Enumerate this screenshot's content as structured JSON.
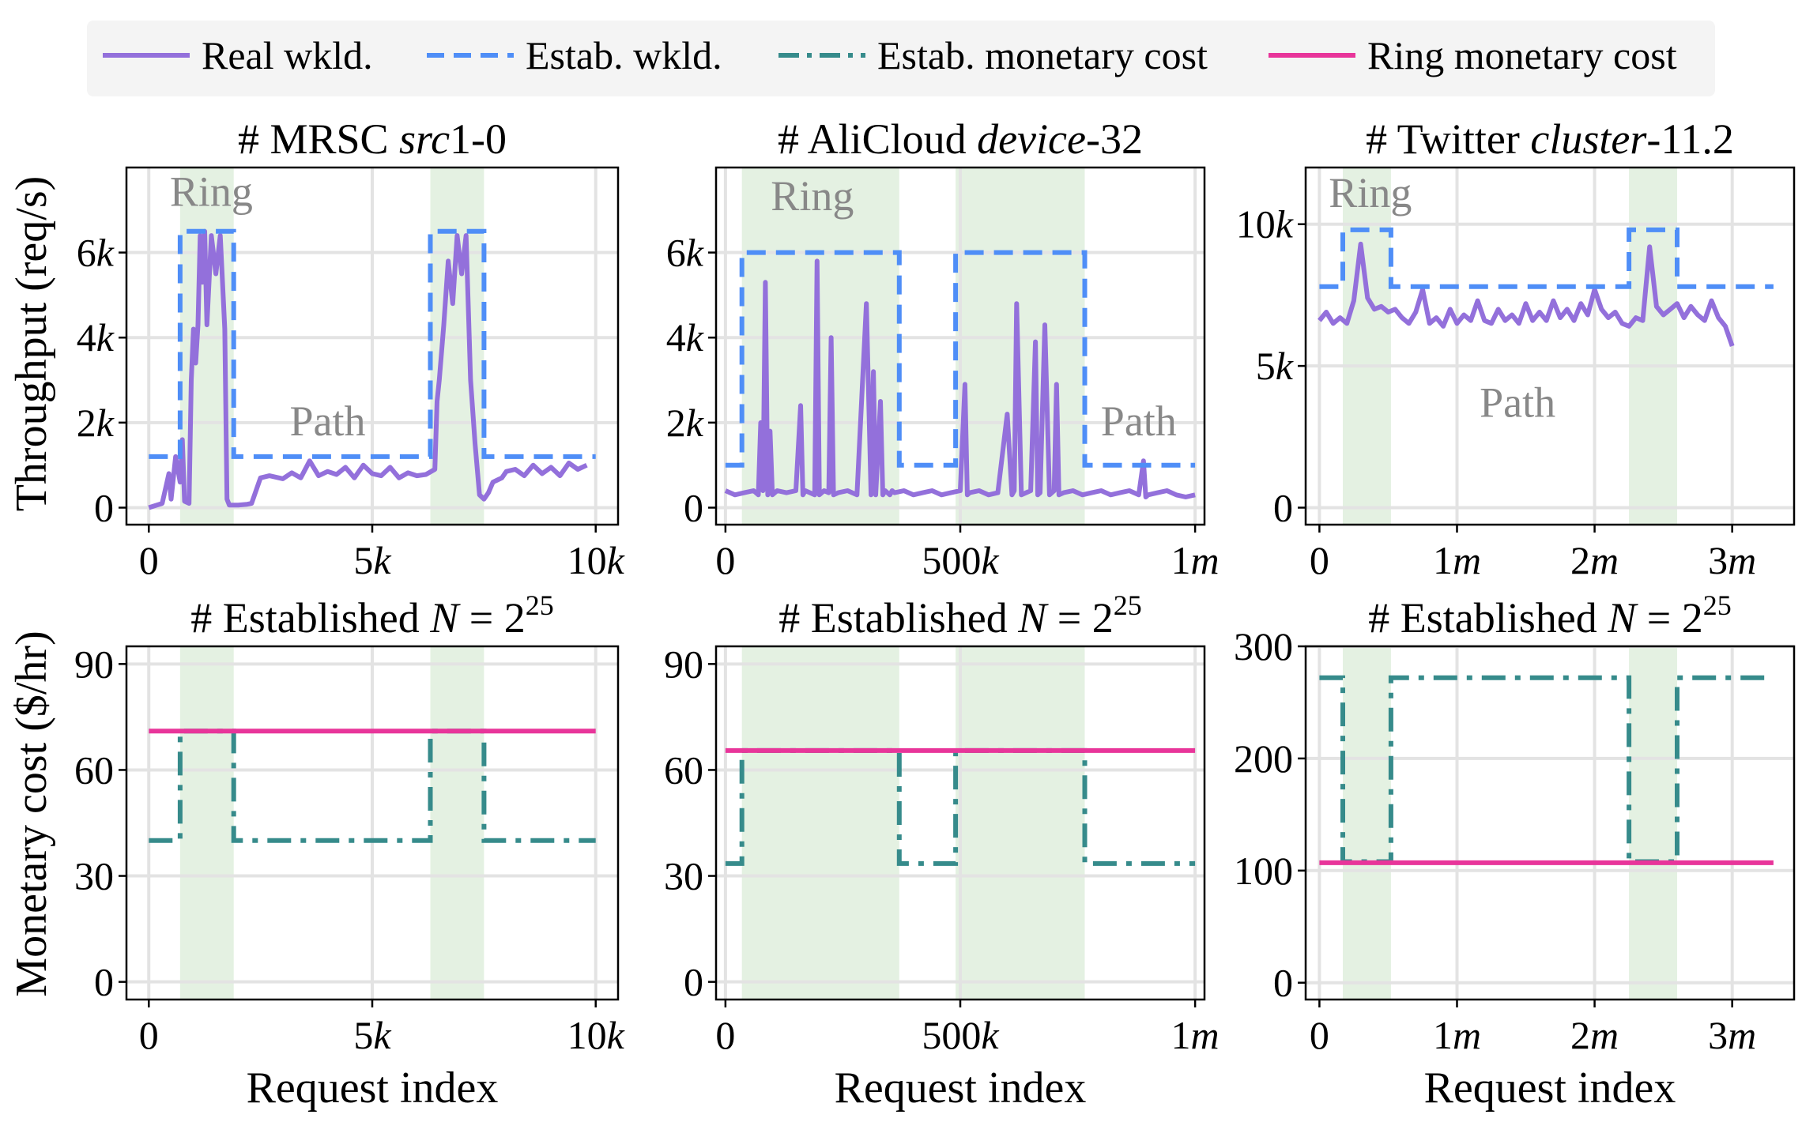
{
  "legend": [
    {
      "label": "Real wkld.",
      "color": "#9370DB",
      "style": "solid"
    },
    {
      "label": "Estab. wkld.",
      "color": "#4F8EF7",
      "style": "dashed"
    },
    {
      "label": "Estab. monetary cost",
      "color": "#368B8B",
      "style": "dashdot"
    },
    {
      "label": "Ring monetary cost",
      "color": "#E8359A",
      "style": "solid"
    }
  ],
  "colors": {
    "shade": "#E4F1E2",
    "grid": "#E3E3E3"
  },
  "ylabels": {
    "top": "Throughput (req/s)",
    "bottom": "Monetary cost ($/hr)"
  },
  "xlabel": "Request index",
  "chart_data": [
    {
      "type": "line",
      "row": 0,
      "col": 0,
      "title_plain": "# MRSC ",
      "title_ital": "src",
      "title_tail": "1-0",
      "xlim": [
        -500,
        10500
      ],
      "ylim": [
        -400,
        8000
      ],
      "xticks": [
        {
          "v": 0,
          "n": "0",
          "u": ""
        },
        {
          "v": 5000,
          "n": "5",
          "u": "k"
        },
        {
          "v": 10000,
          "n": "10",
          "u": "k"
        }
      ],
      "yticks": [
        {
          "v": 0,
          "n": "0",
          "u": ""
        },
        {
          "v": 2000,
          "n": "2",
          "u": "k"
        },
        {
          "v": 4000,
          "n": "4",
          "u": "k"
        },
        {
          "v": 6000,
          "n": "6",
          "u": "k"
        }
      ],
      "shaded": [
        [
          700,
          1900
        ],
        [
          6300,
          7500
        ]
      ],
      "annotations": [
        {
          "text": "Ring",
          "x": 1400,
          "y": 7100
        },
        {
          "text": "Path",
          "x": 4000,
          "y": 1700
        }
      ],
      "series": [
        {
          "name": "Real wkld.",
          "style": "real",
          "x": [
            0,
            300,
            450,
            500,
            600,
            700,
            750,
            800,
            900,
            950,
            1000,
            1050,
            1100,
            1150,
            1200,
            1250,
            1300,
            1400,
            1500,
            1600,
            1700,
            1750,
            1800,
            1900,
            2000,
            2200,
            2300,
            2500,
            2700,
            3000,
            3200,
            3400,
            3600,
            3800,
            4000,
            4200,
            4400,
            4600,
            4800,
            5000,
            5200,
            5400,
            5600,
            5800,
            6000,
            6200,
            6400,
            6450,
            6500,
            6600,
            6700,
            6800,
            6900,
            7000,
            7100,
            7200,
            7300,
            7400,
            7500,
            7600,
            7700,
            7800,
            7900,
            8000,
            8200,
            8400,
            8600,
            8800,
            9000,
            9200,
            9400,
            9600,
            9800
          ],
          "y": [
            0,
            100,
            800,
            200,
            1200,
            600,
            1600,
            150,
            100,
            3000,
            4200,
            3400,
            4300,
            6400,
            5300,
            6500,
            4300,
            6400,
            5500,
            6400,
            4200,
            200,
            60,
            60,
            60,
            80,
            100,
            700,
            750,
            680,
            820,
            700,
            1100,
            750,
            850,
            780,
            950,
            700,
            1000,
            800,
            750,
            950,
            700,
            820,
            750,
            780,
            900,
            2500,
            3000,
            4300,
            5800,
            4800,
            6400,
            5500,
            6400,
            3000,
            1500,
            300,
            200,
            350,
            600,
            650,
            700,
            850,
            900,
            750,
            1000,
            800,
            950,
            750,
            1050,
            900,
            1000
          ]
        },
        {
          "name": "Estab. wkld.",
          "style": "dash",
          "x": [
            0,
            700,
            700,
            1900,
            1900,
            6300,
            6300,
            7500,
            7500,
            10000
          ],
          "y": [
            1200,
            1200,
            6500,
            6500,
            1200,
            1200,
            6500,
            6500,
            1200,
            1200
          ]
        }
      ]
    },
    {
      "type": "line",
      "row": 0,
      "col": 1,
      "title_plain": "# AliCloud ",
      "title_ital": "device",
      "title_tail": "-32",
      "xlim": [
        -20000,
        1020000
      ],
      "ylim": [
        -400,
        8000
      ],
      "xticks": [
        {
          "v": 0,
          "n": "0",
          "u": ""
        },
        {
          "v": 500000,
          "n": "500",
          "u": "k"
        },
        {
          "v": 1000000,
          "n": "1",
          "u": "m"
        }
      ],
      "yticks": [
        {
          "v": 0,
          "n": "0",
          "u": ""
        },
        {
          "v": 2000,
          "n": "2",
          "u": "k"
        },
        {
          "v": 4000,
          "n": "4",
          "u": "k"
        },
        {
          "v": 6000,
          "n": "6",
          "u": "k"
        }
      ],
      "shaded": [
        [
          35000,
          370000
        ],
        [
          490000,
          765000
        ]
      ],
      "annotations": [
        {
          "text": "Ring",
          "x": 185000,
          "y": 7000
        },
        {
          "text": "Path",
          "x": 880000,
          "y": 1700
        }
      ],
      "series": [
        {
          "name": "Real wkld.",
          "style": "real",
          "x": [
            0,
            20000,
            40000,
            60000,
            70000,
            75000,
            80000,
            85000,
            90000,
            95000,
            100000,
            110000,
            130000,
            150000,
            160000,
            165000,
            170000,
            180000,
            190000,
            195000,
            200000,
            210000,
            220000,
            225000,
            230000,
            240000,
            260000,
            280000,
            300000,
            310000,
            315000,
            320000,
            330000,
            335000,
            340000,
            345000,
            350000,
            355000,
            360000,
            380000,
            400000,
            420000,
            440000,
            460000,
            480000,
            500000,
            510000,
            515000,
            520000,
            540000,
            560000,
            580000,
            600000,
            610000,
            615000,
            620000,
            630000,
            640000,
            650000,
            660000,
            665000,
            670000,
            680000,
            690000,
            700000,
            705000,
            710000,
            720000,
            740000,
            760000,
            780000,
            800000,
            820000,
            840000,
            860000,
            880000,
            890000,
            895000,
            900000,
            920000,
            940000,
            960000,
            980000,
            1000000
          ],
          "y": [
            400,
            300,
            350,
            400,
            300,
            2000,
            400,
            5300,
            300,
            1800,
            300,
            400,
            350,
            400,
            2400,
            300,
            400,
            350,
            300,
            5800,
            300,
            400,
            350,
            4000,
            300,
            350,
            400,
            300,
            4800,
            300,
            3200,
            300,
            2500,
            300,
            400,
            350,
            300,
            400,
            350,
            400,
            300,
            350,
            400,
            300,
            350,
            400,
            2900,
            300,
            350,
            400,
            300,
            350,
            2200,
            300,
            400,
            4800,
            300,
            350,
            400,
            3900,
            300,
            350,
            4300,
            300,
            400,
            2900,
            300,
            350,
            400,
            300,
            350,
            400,
            300,
            350,
            400,
            300,
            1100,
            250,
            300,
            350,
            400,
            300,
            250,
            300
          ]
        },
        {
          "name": "Estab. wkld.",
          "style": "dash",
          "x": [
            0,
            35000,
            35000,
            370000,
            370000,
            490000,
            490000,
            765000,
            765000,
            1000000
          ],
          "y": [
            1000,
            1000,
            6000,
            6000,
            1000,
            1000,
            6000,
            6000,
            1000,
            1000
          ]
        }
      ]
    },
    {
      "type": "line",
      "row": 0,
      "col": 2,
      "title_plain": "# Twitter ",
      "title_ital": "cluster",
      "title_tail": "-11.2",
      "xlim": [
        -100000,
        3450000
      ],
      "ylim": [
        -600,
        12000
      ],
      "xticks": [
        {
          "v": 0,
          "n": "0",
          "u": ""
        },
        {
          "v": 1000000,
          "n": "1",
          "u": "m"
        },
        {
          "v": 2000000,
          "n": "2",
          "u": "m"
        },
        {
          "v": 3000000,
          "n": "3",
          "u": "m"
        }
      ],
      "yticks": [
        {
          "v": 0,
          "n": "0",
          "u": ""
        },
        {
          "v": 5000,
          "n": "5",
          "u": "k"
        },
        {
          "v": 10000,
          "n": "10",
          "u": "k"
        }
      ],
      "shaded": [
        [
          170000,
          520000
        ],
        [
          2250000,
          2600000
        ]
      ],
      "annotations": [
        {
          "text": "Ring",
          "x": 370000,
          "y": 10600
        },
        {
          "text": "Path",
          "x": 1440000,
          "y": 3200
        }
      ],
      "series": [
        {
          "name": "Real wkld.",
          "style": "real",
          "x": [
            0,
            50000,
            100000,
            150000,
            200000,
            250000,
            300000,
            350000,
            400000,
            450000,
            500000,
            550000,
            600000,
            650000,
            700000,
            750000,
            800000,
            850000,
            900000,
            950000,
            1000000,
            1050000,
            1100000,
            1150000,
            1200000,
            1250000,
            1300000,
            1350000,
            1400000,
            1450000,
            1500000,
            1550000,
            1600000,
            1650000,
            1700000,
            1750000,
            1800000,
            1850000,
            1900000,
            1950000,
            2000000,
            2050000,
            2100000,
            2150000,
            2200000,
            2250000,
            2300000,
            2350000,
            2400000,
            2450000,
            2500000,
            2550000,
            2600000,
            2650000,
            2700000,
            2750000,
            2800000,
            2850000,
            2900000,
            2950000,
            3000000
          ],
          "y": [
            6600,
            6900,
            6500,
            6700,
            6500,
            7300,
            9300,
            7400,
            7000,
            7100,
            6900,
            7000,
            6700,
            6500,
            6900,
            7700,
            6500,
            6700,
            6400,
            7000,
            6500,
            6800,
            6600,
            7300,
            6600,
            6500,
            7000,
            6600,
            6800,
            6500,
            7200,
            6600,
            6900,
            6600,
            7300,
            6700,
            7000,
            6600,
            7200,
            6800,
            7700,
            7000,
            6700,
            6900,
            6500,
            6400,
            6700,
            6600,
            9200,
            7100,
            6800,
            7000,
            7200,
            6700,
            7100,
            6800,
            6600,
            7300,
            6700,
            6400,
            5700
          ]
        },
        {
          "name": "Estab. wkld.",
          "style": "dash",
          "x": [
            0,
            170000,
            170000,
            520000,
            520000,
            2250000,
            2250000,
            2600000,
            2600000,
            3300000
          ],
          "y": [
            7800,
            7800,
            9800,
            9800,
            7800,
            7800,
            9800,
            9800,
            7800,
            7800
          ]
        }
      ]
    },
    {
      "type": "line",
      "row": 1,
      "col": 0,
      "title_plain": "# Established ",
      "title_ital": "N",
      "title_tail": " = 2",
      "title_sup": "25",
      "xlim": [
        -500,
        10500
      ],
      "ylim": [
        -5,
        95
      ],
      "xticks": [
        {
          "v": 0,
          "n": "0",
          "u": ""
        },
        {
          "v": 5000,
          "n": "5",
          "u": "k"
        },
        {
          "v": 10000,
          "n": "10",
          "u": "k"
        }
      ],
      "yticks": [
        {
          "v": 0,
          "n": "0",
          "u": ""
        },
        {
          "v": 30,
          "n": "30",
          "u": ""
        },
        {
          "v": 60,
          "n": "60",
          "u": ""
        },
        {
          "v": 90,
          "n": "90",
          "u": ""
        }
      ],
      "shaded": [
        [
          700,
          1900
        ],
        [
          6300,
          7500
        ]
      ],
      "annotations": [],
      "series": [
        {
          "name": "Estab. monetary cost",
          "style": "dashdot",
          "x": [
            0,
            700,
            700,
            1900,
            1900,
            6300,
            6300,
            7500,
            7500,
            10000
          ],
          "y": [
            40,
            40,
            71,
            71,
            40,
            40,
            71,
            71,
            40,
            40
          ]
        },
        {
          "name": "Ring monetary cost",
          "style": "ring",
          "x": [
            0,
            10000
          ],
          "y": [
            71,
            71
          ]
        }
      ]
    },
    {
      "type": "line",
      "row": 1,
      "col": 1,
      "title_plain": "# Established ",
      "title_ital": "N",
      "title_tail": " = 2",
      "title_sup": "25",
      "xlim": [
        -20000,
        1020000
      ],
      "ylim": [
        -5,
        95
      ],
      "xticks": [
        {
          "v": 0,
          "n": "0",
          "u": ""
        },
        {
          "v": 500000,
          "n": "500",
          "u": "k"
        },
        {
          "v": 1000000,
          "n": "1",
          "u": "m"
        }
      ],
      "yticks": [
        {
          "v": 0,
          "n": "0",
          "u": ""
        },
        {
          "v": 30,
          "n": "30",
          "u": ""
        },
        {
          "v": 60,
          "n": "60",
          "u": ""
        },
        {
          "v": 90,
          "n": "90",
          "u": ""
        }
      ],
      "shaded": [
        [
          35000,
          370000
        ],
        [
          490000,
          765000
        ]
      ],
      "annotations": [],
      "series": [
        {
          "name": "Estab. monetary cost",
          "style": "dashdot",
          "x": [
            0,
            35000,
            35000,
            370000,
            370000,
            490000,
            490000,
            765000,
            765000,
            1000000
          ],
          "y": [
            33.5,
            33.5,
            65.5,
            65.5,
            33.5,
            33.5,
            65.5,
            65.5,
            33.5,
            33.5
          ]
        },
        {
          "name": "Ring monetary cost",
          "style": "ring",
          "x": [
            0,
            1000000
          ],
          "y": [
            65.5,
            65.5
          ]
        }
      ]
    },
    {
      "type": "line",
      "row": 1,
      "col": 2,
      "title_plain": "# Established ",
      "title_ital": "N",
      "title_tail": " = 2",
      "title_sup": "25",
      "xlim": [
        -100000,
        3450000
      ],
      "ylim": [
        -15,
        300
      ],
      "xticks": [
        {
          "v": 0,
          "n": "0",
          "u": ""
        },
        {
          "v": 1000000,
          "n": "1",
          "u": "m"
        },
        {
          "v": 2000000,
          "n": "2",
          "u": "m"
        },
        {
          "v": 3000000,
          "n": "3",
          "u": "m"
        }
      ],
      "yticks": [
        {
          "v": 0,
          "n": "0",
          "u": ""
        },
        {
          "v": 100,
          "n": "100",
          "u": ""
        },
        {
          "v": 200,
          "n": "200",
          "u": ""
        },
        {
          "v": 300,
          "n": "300",
          "u": ""
        }
      ],
      "shaded": [
        [
          170000,
          520000
        ],
        [
          2250000,
          2600000
        ]
      ],
      "annotations": [],
      "series": [
        {
          "name": "Estab. monetary cost",
          "style": "dashdot",
          "x": [
            0,
            170000,
            170000,
            520000,
            520000,
            2250000,
            2250000,
            2600000,
            2600000,
            3300000
          ],
          "y": [
            272,
            272,
            108,
            108,
            272,
            272,
            108,
            108,
            272,
            272
          ]
        },
        {
          "name": "Ring monetary cost",
          "style": "ring",
          "x": [
            0,
            3300000
          ],
          "y": [
            107,
            107
          ]
        }
      ]
    }
  ]
}
